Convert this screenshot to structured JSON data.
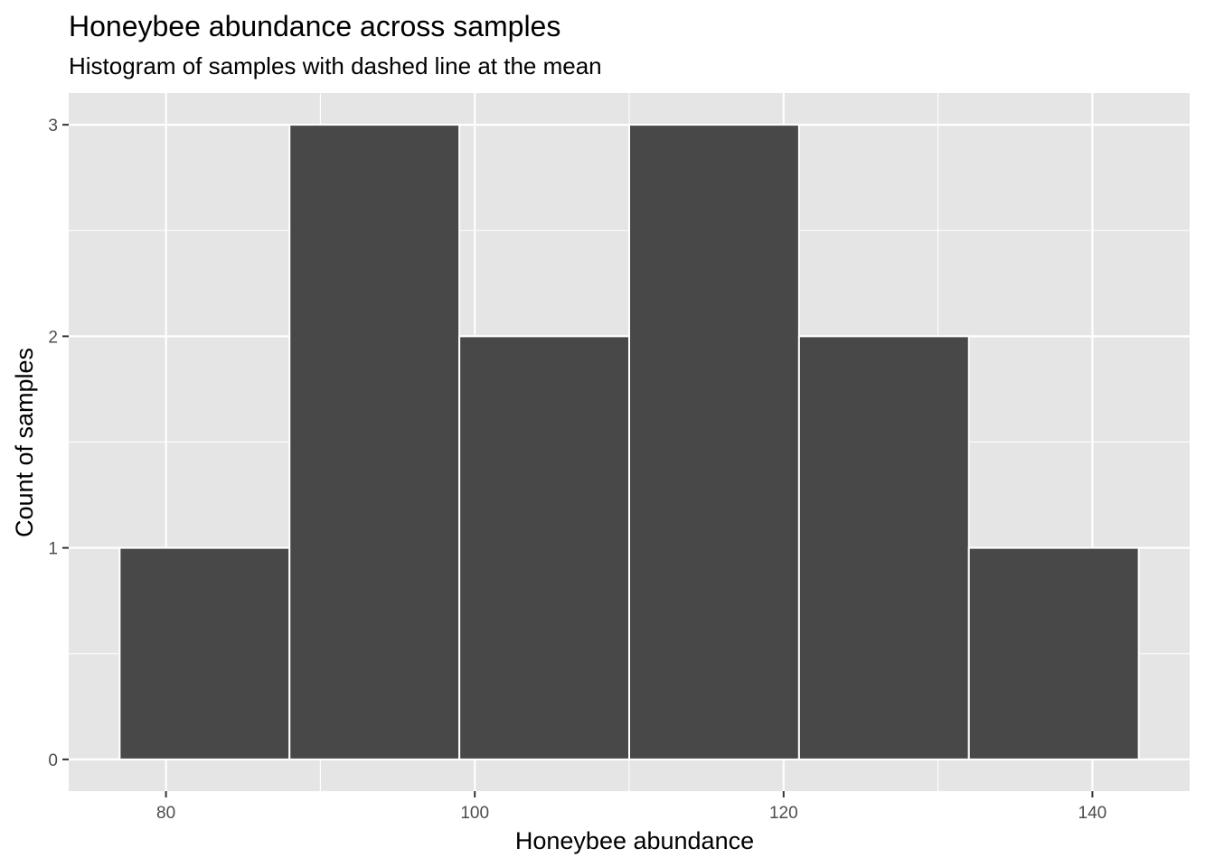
{
  "chart_data": {
    "type": "bar",
    "title": "Honeybee abundance across samples",
    "subtitle": "Histogram of samples with dashed line at the mean",
    "xlabel": "Honeybee abundance",
    "ylabel": "Count of samples",
    "xlim": [
      73.7,
      146.3
    ],
    "ylim": [
      -0.15,
      3.15
    ],
    "x_ticks": [
      80,
      100,
      120,
      140
    ],
    "y_ticks": [
      0,
      1,
      2,
      3
    ],
    "grid": true,
    "bins": [
      {
        "x_min": 77,
        "x_max": 88,
        "count": 1
      },
      {
        "x_min": 88,
        "x_max": 99,
        "count": 3
      },
      {
        "x_min": 99,
        "x_max": 110,
        "count": 2
      },
      {
        "x_min": 110,
        "x_max": 121,
        "count": 3
      },
      {
        "x_min": 121,
        "x_max": 132,
        "count": 2
      },
      {
        "x_min": 132,
        "x_max": 143,
        "count": 1
      }
    ],
    "colors": {
      "panel": "#e5e5e5",
      "grid": "#ffffff",
      "bar_fill": "#484848",
      "bar_outline": "#ffffff",
      "tick": "#333333"
    }
  }
}
